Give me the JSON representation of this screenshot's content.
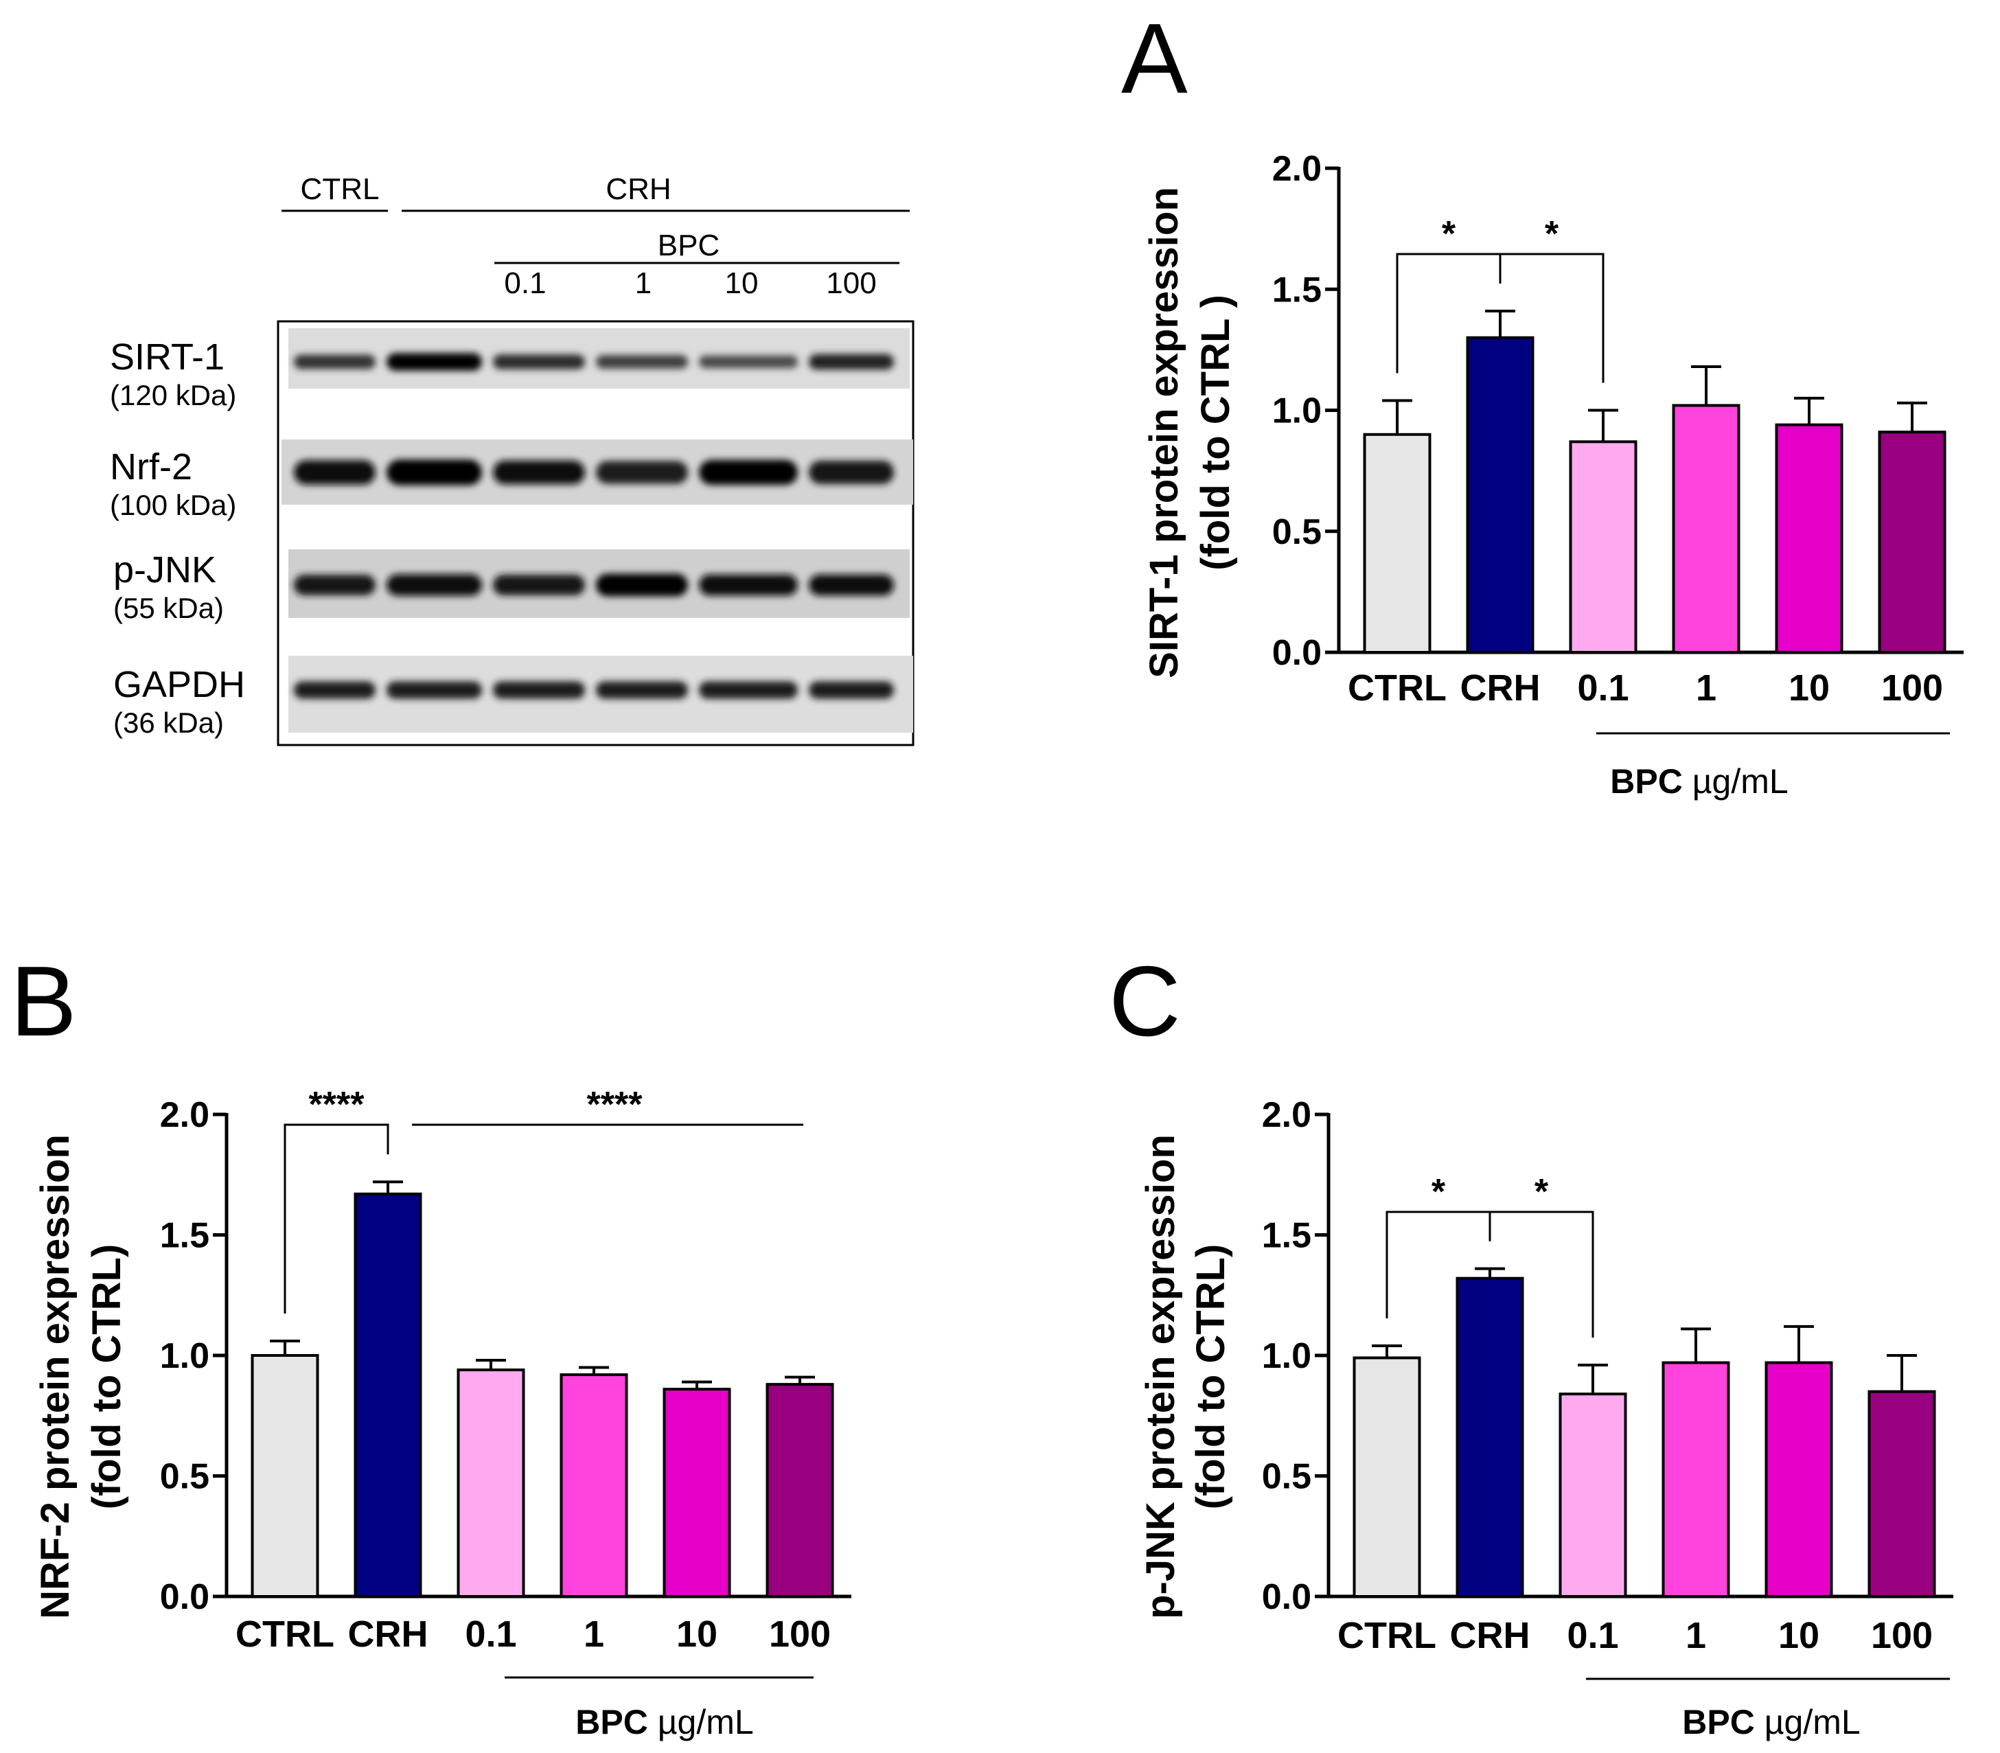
{
  "western_blot": {
    "groups": {
      "ctrl": "CTRL",
      "crh": "CRH",
      "bpc": "BPC"
    },
    "doses": [
      "0.1",
      "1",
      "10",
      "100"
    ],
    "rows": [
      {
        "name": "SIRT-1",
        "kda": "(120 kDa)"
      },
      {
        "name": "Nrf-2",
        "kda": "(100 kDa)"
      },
      {
        "name": "p-JNK",
        "kda": "(55 kDa)"
      },
      {
        "name": "GAPDH",
        "kda": "(36 kDa)"
      }
    ],
    "band_intensity": [
      [
        0.55,
        0.95,
        0.6,
        0.45,
        0.35,
        0.7
      ],
      [
        0.9,
        1.0,
        0.85,
        0.75,
        0.95,
        0.8
      ],
      [
        0.8,
        0.9,
        0.8,
        1.0,
        0.85,
        0.85
      ],
      [
        0.75,
        0.75,
        0.75,
        0.75,
        0.75,
        0.75
      ]
    ]
  },
  "bar_colors": [
    "#e6e6e6",
    "#000080",
    "#ffaaee",
    "#ff44dd",
    "#e600c8",
    "#990080"
  ],
  "chart_data": [
    {
      "panel_label": "A",
      "type": "bar",
      "categories": [
        "CTRL",
        "CRH",
        "0.1",
        "1",
        "10",
        "100"
      ],
      "values": [
        0.9,
        1.3,
        0.87,
        1.02,
        0.94,
        0.91
      ],
      "errors": [
        0.14,
        0.11,
        0.13,
        0.16,
        0.11,
        0.12
      ],
      "ylabel_line1": "SIRT-1 protein expression",
      "ylabel_line2": "(fold to CTRL )",
      "xlabel_bold": "BPC",
      "xlabel_unit": "µg/mL",
      "ylim": [
        0,
        2.0
      ],
      "yticks": [
        "0.0",
        "0.5",
        "1.0",
        "1.5",
        "2.0"
      ],
      "significance": [
        {
          "from": 0,
          "to": 1,
          "label": "*"
        },
        {
          "from": 1,
          "to": 2,
          "label": "*"
        }
      ]
    },
    {
      "panel_label": "B",
      "type": "bar",
      "categories": [
        "CTRL",
        "CRH",
        "0.1",
        "1",
        "10",
        "100"
      ],
      "values": [
        1.0,
        1.67,
        0.94,
        0.92,
        0.86,
        0.88
      ],
      "errors": [
        0.06,
        0.05,
        0.04,
        0.03,
        0.03,
        0.03
      ],
      "ylabel_line1": "NRF-2 protein expression",
      "ylabel_line2": "(fold to CTRL)",
      "xlabel_bold": "BPC",
      "xlabel_unit": "µg/mL",
      "ylim": [
        0,
        2.0
      ],
      "yticks": [
        "0.0",
        "0.5",
        "1.0",
        "1.5",
        "2.0"
      ],
      "significance": [
        {
          "from": 0,
          "to": 1,
          "label": "****"
        },
        {
          "from": 1,
          "to": 5,
          "label": "****"
        }
      ]
    },
    {
      "panel_label": "C",
      "type": "bar",
      "categories": [
        "CTRL",
        "CRH",
        "0.1",
        "1",
        "10",
        "100"
      ],
      "values": [
        0.99,
        1.32,
        0.84,
        0.97,
        0.97,
        0.85
      ],
      "errors": [
        0.05,
        0.04,
        0.12,
        0.14,
        0.15,
        0.15
      ],
      "ylabel_line1": "p-JNK protein expression",
      "ylabel_line2": "(fold to CTRL)",
      "xlabel_bold": "BPC",
      "xlabel_unit": "µg/mL",
      "ylim": [
        0,
        2.0
      ],
      "yticks": [
        "0.0",
        "0.5",
        "1.0",
        "1.5",
        "2.0"
      ],
      "significance": [
        {
          "from": 0,
          "to": 1,
          "label": "*"
        },
        {
          "from": 1,
          "to": 2,
          "label": "*"
        }
      ]
    }
  ]
}
